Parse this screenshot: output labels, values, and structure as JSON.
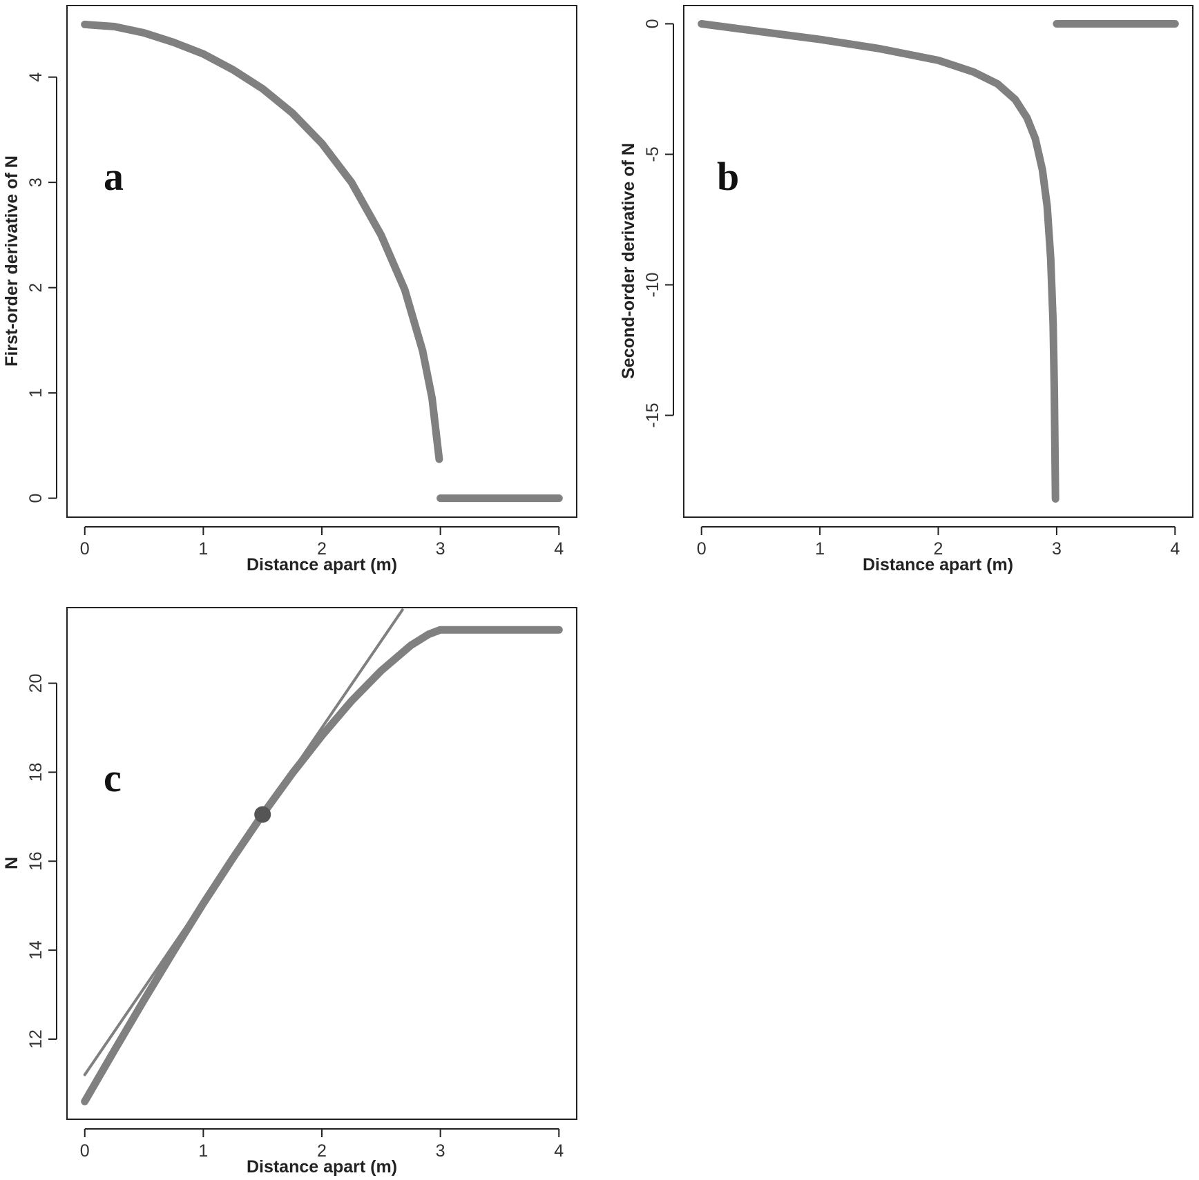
{
  "chart_data": [
    {
      "panel": "a",
      "type": "line",
      "xlabel": "Distance apart  (m)",
      "ylabel": "First-order derivative of N",
      "xlim": [
        -0.15,
        4.15
      ],
      "ylim": [
        -0.18,
        4.68
      ],
      "xticks": [
        0,
        1,
        2,
        3,
        4
      ],
      "yticks": [
        0,
        1,
        2,
        3,
        4
      ],
      "color": "#808080",
      "series": [
        {
          "x": [
            0,
            0.25,
            0.5,
            0.75,
            1.0,
            1.25,
            1.5,
            1.75,
            2.0,
            2.25,
            2.5,
            2.7,
            2.85,
            2.93,
            2.99
          ],
          "y": [
            4.5,
            4.48,
            4.42,
            4.33,
            4.22,
            4.07,
            3.89,
            3.66,
            3.37,
            3.0,
            2.5,
            1.98,
            1.4,
            0.95,
            0.37
          ]
        },
        {
          "x": [
            3.0,
            4.0
          ],
          "y": [
            0,
            0
          ]
        }
      ]
    },
    {
      "panel": "b",
      "type": "line",
      "xlabel": "Distance apart  (m)",
      "ylabel": "Second-order derivative of N",
      "xlim": [
        -0.15,
        4.15
      ],
      "ylim": [
        -18.9,
        0.7
      ],
      "xticks": [
        0,
        1,
        2,
        3,
        4
      ],
      "yticks": [
        0,
        -5,
        -10,
        -15
      ],
      "color": "#808080",
      "series": [
        {
          "x": [
            0,
            0.5,
            1.0,
            1.5,
            2.0,
            2.3,
            2.5,
            2.65,
            2.75,
            2.82,
            2.88,
            2.92,
            2.95,
            2.97,
            2.98,
            2.99
          ],
          "y": [
            0,
            -0.3,
            -0.6,
            -0.95,
            -1.4,
            -1.85,
            -2.3,
            -2.9,
            -3.6,
            -4.4,
            -5.6,
            -7.0,
            -9.0,
            -11.5,
            -14.0,
            -18.2
          ]
        },
        {
          "x": [
            3.0,
            4.0
          ],
          "y": [
            0,
            0
          ]
        }
      ]
    },
    {
      "panel": "c",
      "type": "line",
      "xlabel": "Distance apart  (m)",
      "ylabel": "N",
      "xlim": [
        -0.15,
        4.15
      ],
      "ylim": [
        10.2,
        21.7
      ],
      "xticks": [
        0,
        1,
        2,
        3,
        4
      ],
      "yticks": [
        12,
        14,
        16,
        18,
        20
      ],
      "color": "#808080",
      "series": [
        {
          "x": [
            0,
            0.25,
            0.5,
            0.75,
            1.0,
            1.25,
            1.5,
            1.75,
            2.0,
            2.25,
            2.5,
            2.75,
            2.9,
            3.0,
            4.0
          ],
          "y": [
            10.6,
            11.75,
            12.88,
            13.98,
            15.05,
            16.07,
            17.05,
            17.97,
            18.82,
            19.6,
            20.28,
            20.85,
            21.1,
            21.2,
            21.2
          ]
        }
      ],
      "tangent_line": {
        "x": [
          0,
          2.68
        ],
        "y": [
          11.2,
          21.65
        ]
      },
      "highlight_point": {
        "x": 1.5,
        "y": 17.05
      }
    }
  ]
}
